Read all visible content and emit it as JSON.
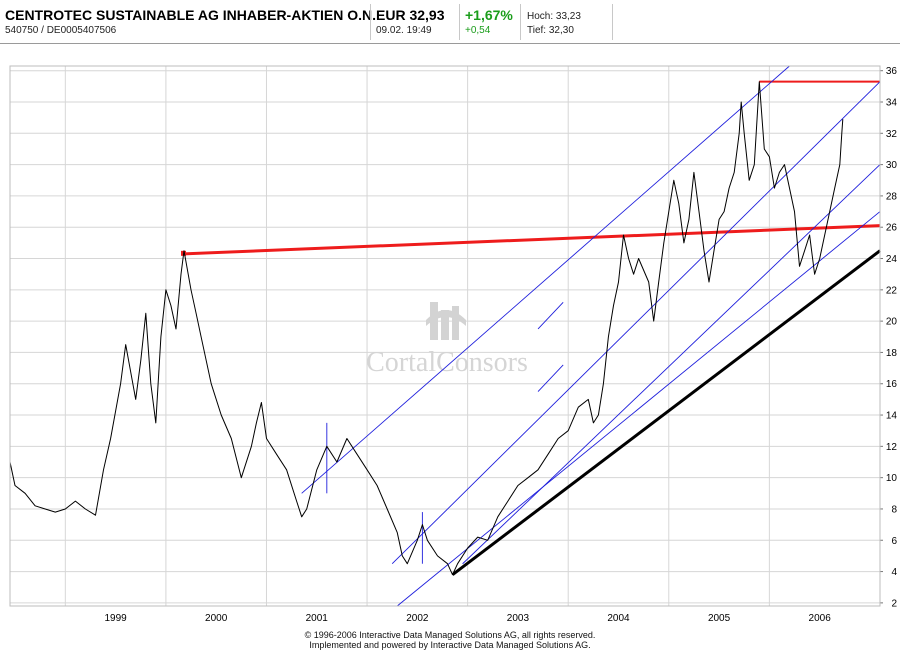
{
  "header": {
    "title": "CENTROTEC SUSTAINABLE AG INHABER-AKTIEN O.N.",
    "wkn_isin": "540750  /  DE0005407506",
    "price": "EUR 32,93",
    "timestamp": "09.02. 19:49",
    "change_pct": "+1,67%",
    "change_abs": "+0,54",
    "high": "Hoch: 33,23",
    "low": "Tief: 32,30"
  },
  "watermark": "CortalConsors",
  "footer": {
    "line1": "© 1996-2006 Interactive Data Managed Solutions AG, all rights reserved.",
    "line2": "Implemented and powered by Interactive Data Managed Solutions AG."
  },
  "colors": {
    "price_line": "#000000",
    "channel_lines": "#1e1edc",
    "resistance_lines": "#ee1c1c",
    "support_line": "#000000",
    "grid": "#d6d6d6",
    "change_positive": "#1b9d1b"
  },
  "chart_data": {
    "type": "line",
    "title": "",
    "xlabel": "",
    "ylabel": "",
    "x_ticks": [
      "1999",
      "2000",
      "2001",
      "2002",
      "2003",
      "2004",
      "2005",
      "2006"
    ],
    "y_ticks": [
      2,
      4,
      6,
      8,
      10,
      12,
      14,
      16,
      18,
      20,
      22,
      24,
      26,
      28,
      30,
      32,
      34,
      36
    ],
    "ylim": [
      1.8,
      36.3
    ],
    "xlim": [
      1998.45,
      2007.1
    ],
    "y_axis_side": "right",
    "grid": true,
    "series": [
      {
        "kind": "price",
        "points": [
          [
            1998.45,
            11.0
          ],
          [
            1998.5,
            9.5
          ],
          [
            1998.6,
            9.0
          ],
          [
            1998.7,
            8.2
          ],
          [
            1998.8,
            8.0
          ],
          [
            1998.9,
            7.8
          ],
          [
            1999.0,
            8.0
          ],
          [
            1999.1,
            8.5
          ],
          [
            1999.2,
            8.0
          ],
          [
            1999.3,
            7.6
          ],
          [
            1999.38,
            10.5
          ],
          [
            1999.45,
            12.5
          ],
          [
            1999.55,
            16.0
          ],
          [
            1999.6,
            18.5
          ],
          [
            1999.7,
            15.0
          ],
          [
            1999.75,
            17.5
          ],
          [
            1999.8,
            20.5
          ],
          [
            1999.85,
            16.0
          ],
          [
            1999.9,
            13.5
          ],
          [
            1999.95,
            19.0
          ],
          [
            2000.0,
            22.0
          ],
          [
            2000.05,
            21.0
          ],
          [
            2000.1,
            19.5
          ],
          [
            2000.15,
            23.0
          ],
          [
            2000.18,
            24.5
          ],
          [
            2000.25,
            22.0
          ],
          [
            2000.3,
            20.5
          ],
          [
            2000.35,
            19.0
          ],
          [
            2000.45,
            16.0
          ],
          [
            2000.55,
            14.0
          ],
          [
            2000.65,
            12.5
          ],
          [
            2000.75,
            10.0
          ],
          [
            2000.85,
            12.0
          ],
          [
            2000.9,
            13.5
          ],
          [
            2000.95,
            14.8
          ],
          [
            2001.0,
            12.5
          ],
          [
            2001.1,
            11.5
          ],
          [
            2001.2,
            10.5
          ],
          [
            2001.3,
            8.5
          ],
          [
            2001.35,
            7.5
          ],
          [
            2001.4,
            8.0
          ],
          [
            2001.5,
            10.5
          ],
          [
            2001.6,
            12.0
          ],
          [
            2001.7,
            11.0
          ],
          [
            2001.8,
            12.5
          ],
          [
            2001.9,
            11.5
          ],
          [
            2002.0,
            10.5
          ],
          [
            2002.1,
            9.5
          ],
          [
            2002.2,
            8.0
          ],
          [
            2002.3,
            6.5
          ],
          [
            2002.35,
            5.0
          ],
          [
            2002.4,
            4.5
          ],
          [
            2002.5,
            6.0
          ],
          [
            2002.55,
            7.0
          ],
          [
            2002.6,
            6.0
          ],
          [
            2002.7,
            5.0
          ],
          [
            2002.8,
            4.5
          ],
          [
            2002.85,
            3.8
          ],
          [
            2002.9,
            4.5
          ],
          [
            2003.0,
            5.5
          ],
          [
            2003.1,
            6.2
          ],
          [
            2003.2,
            6.0
          ],
          [
            2003.3,
            7.5
          ],
          [
            2003.4,
            8.5
          ],
          [
            2003.5,
            9.5
          ],
          [
            2003.6,
            10.0
          ],
          [
            2003.7,
            10.5
          ],
          [
            2003.8,
            11.5
          ],
          [
            2003.9,
            12.5
          ],
          [
            2004.0,
            13.0
          ],
          [
            2004.1,
            14.5
          ],
          [
            2004.2,
            15.0
          ],
          [
            2004.25,
            13.5
          ],
          [
            2004.3,
            14.0
          ],
          [
            2004.35,
            16.0
          ],
          [
            2004.4,
            19.0
          ],
          [
            2004.45,
            21.0
          ],
          [
            2004.5,
            22.5
          ],
          [
            2004.55,
            25.5
          ],
          [
            2004.6,
            24.0
          ],
          [
            2004.65,
            23.0
          ],
          [
            2004.7,
            24.0
          ],
          [
            2004.8,
            22.5
          ],
          [
            2004.85,
            20.0
          ],
          [
            2004.9,
            22.5
          ],
          [
            2004.95,
            25.0
          ],
          [
            2005.0,
            27.0
          ],
          [
            2005.05,
            29.0
          ],
          [
            2005.1,
            27.5
          ],
          [
            2005.15,
            25.0
          ],
          [
            2005.2,
            26.5
          ],
          [
            2005.25,
            29.5
          ],
          [
            2005.3,
            27.0
          ],
          [
            2005.35,
            24.5
          ],
          [
            2005.4,
            22.5
          ],
          [
            2005.45,
            24.5
          ],
          [
            2005.5,
            26.5
          ],
          [
            2005.55,
            27.0
          ],
          [
            2005.6,
            28.5
          ],
          [
            2005.65,
            29.5
          ],
          [
            2005.7,
            32.0
          ],
          [
            2005.72,
            34.0
          ],
          [
            2005.75,
            32.0
          ],
          [
            2005.8,
            29.0
          ],
          [
            2005.85,
            30.0
          ],
          [
            2005.9,
            35.3
          ],
          [
            2005.95,
            31.0
          ],
          [
            2006.0,
            30.5
          ],
          [
            2006.05,
            28.5
          ],
          [
            2006.1,
            29.5
          ],
          [
            2006.15,
            30.0
          ],
          [
            2006.2,
            28.5
          ],
          [
            2006.25,
            27.0
          ],
          [
            2006.3,
            23.5
          ],
          [
            2006.35,
            24.5
          ],
          [
            2006.4,
            25.5
          ],
          [
            2006.45,
            23.0
          ],
          [
            2006.5,
            24.0
          ],
          [
            2006.55,
            25.5
          ],
          [
            2006.6,
            27.0
          ],
          [
            2006.65,
            28.5
          ],
          [
            2006.7,
            30.0
          ],
          [
            2006.72,
            32.0
          ],
          [
            2006.73,
            32.9
          ]
        ]
      },
      {
        "kind": "support",
        "points": [
          [
            2002.85,
            3.8
          ],
          [
            2007.1,
            24.5
          ]
        ]
      },
      {
        "kind": "resistance",
        "points": [
          [
            2000.18,
            24.3
          ],
          [
            2007.1,
            26.1
          ]
        ]
      },
      {
        "kind": "resistance-top",
        "points": [
          [
            2005.9,
            35.3
          ],
          [
            2007.1,
            35.3
          ]
        ]
      },
      {
        "kind": "channel",
        "points": [
          [
            2001.35,
            9.0
          ],
          [
            2006.2,
            36.3
          ]
        ]
      },
      {
        "kind": "channel",
        "points": [
          [
            2002.25,
            4.5
          ],
          [
            2007.1,
            35.3
          ]
        ]
      },
      {
        "kind": "channel",
        "points": [
          [
            2002.95,
            4.5
          ],
          [
            2007.1,
            30.0
          ]
        ]
      },
      {
        "kind": "channel",
        "points": [
          [
            2002.3,
            1.8
          ],
          [
            2007.1,
            27.0
          ]
        ]
      },
      {
        "kind": "channel",
        "points": [
          [
            2001.6,
            13.5
          ],
          [
            2001.6,
            9.0
          ]
        ]
      },
      {
        "kind": "channel",
        "points": [
          [
            2002.55,
            7.8
          ],
          [
            2002.55,
            4.5
          ]
        ]
      },
      {
        "kind": "channel",
        "points": [
          [
            2003.7,
            19.5
          ],
          [
            2003.95,
            21.2
          ]
        ]
      },
      {
        "kind": "channel",
        "points": [
          [
            2003.7,
            15.5
          ],
          [
            2003.95,
            17.2
          ]
        ]
      }
    ]
  }
}
